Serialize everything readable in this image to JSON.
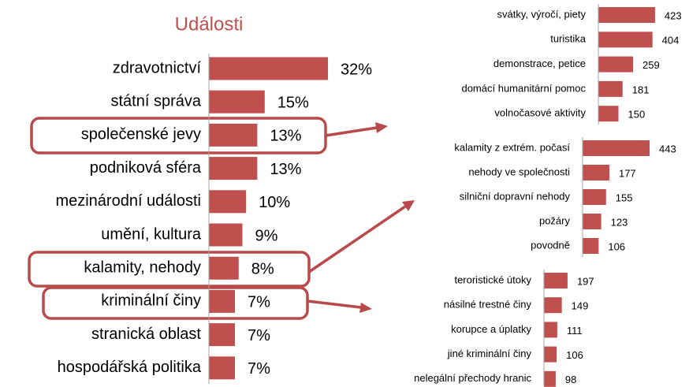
{
  "chart_data": [
    {
      "type": "bar",
      "orientation": "horizontal",
      "title": "Události",
      "categories": [
        "zdravotnictví",
        "státní správa",
        "společenské jevy",
        "podniková sféra",
        "mezinárodní události",
        "umění, kultura",
        "kalamity, nehody",
        "kriminální činy",
        "stranická oblast",
        "hospodářská politika"
      ],
      "values": [
        32,
        15,
        13,
        13,
        10,
        9,
        8,
        7,
        7,
        7
      ],
      "value_labels": [
        "32%",
        "15%",
        "13%",
        "13%",
        "10%",
        "9%",
        "8%",
        "7%",
        "7%",
        "7%"
      ],
      "color": "#c0504d"
    },
    {
      "type": "bar",
      "orientation": "horizontal",
      "categories": [
        "svátky, výročí, piety",
        "turistika",
        "demonstrace, petice",
        "domácí humanitární pomoc",
        "volnočasové aktivity"
      ],
      "values": [
        423,
        404,
        259,
        181,
        150
      ],
      "color": "#c0504d"
    },
    {
      "type": "bar",
      "orientation": "horizontal",
      "categories": [
        "kalamity z extrém. počasí",
        "nehody ve společnosti",
        "silniční dopravní nehody",
        "požáry",
        "povodně"
      ],
      "values": [
        443,
        177,
        155,
        123,
        106
      ],
      "color": "#c0504d"
    },
    {
      "type": "bar",
      "orientation": "horizontal",
      "categories": [
        "teroristické útoky",
        "násilné trestné činy",
        "korupce a úplatky",
        "jiné kriminální činy",
        "nelegální přechody hranic"
      ],
      "values": [
        197,
        149,
        111,
        106,
        98
      ],
      "color": "#c0504d"
    }
  ]
}
